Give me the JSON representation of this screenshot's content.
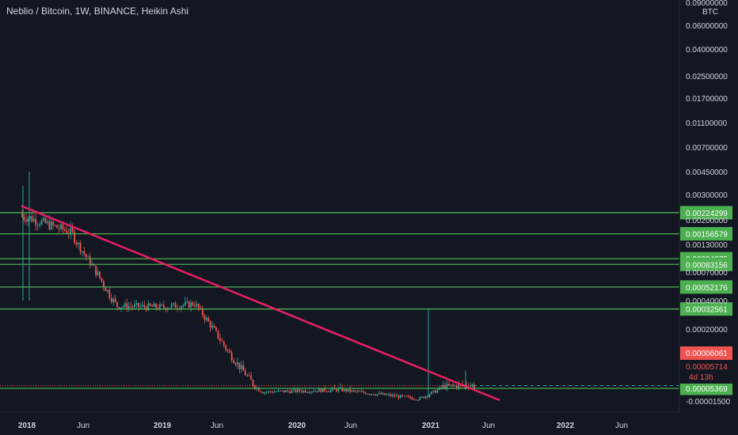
{
  "header": {
    "symbol": "Neblio / Bitcoin",
    "interval": "1W",
    "exchange": "BINANCE",
    "chart_style": "Heikin Ashi",
    "title_full": "Neblio / Bitcoin, 1W, BINANCE, Heikin Ashi"
  },
  "price_axis": {
    "unit": "BTC",
    "scale": "log"
  },
  "colors": {
    "background": "#131722",
    "up": "#26a69a",
    "down": "#ef5350",
    "level_line": "#4caf50",
    "trendline": "#e91e63",
    "current_price": "#ef5350"
  },
  "chart_data": {
    "type": "candlestick",
    "title": "Neblio / Bitcoin, 1W, BINANCE, Heikin Ashi",
    "xlabel": "",
    "ylabel": "BTC",
    "ylim": [
      -1.5e-05,
      0.09
    ],
    "y_scale": "log",
    "grid": false,
    "x_ticks": [
      "2018",
      "Jun",
      "2019",
      "Jun",
      "2020",
      "Jun",
      "2021",
      "Jun",
      "2022",
      "Jun"
    ],
    "y_ticks": [
      "0.09000000",
      "0.06000000",
      "0.04000000",
      "0.02500000",
      "0.01700000",
      "0.01100000",
      "0.00700000",
      "0.00450000",
      "0.00300000",
      "0.00200000",
      "0.00130000",
      "0.00070000",
      "0.00040000",
      "0.00020000",
      "-0.00001500"
    ],
    "key_points": [
      {
        "date": "2018-01",
        "price": 0.0021
      },
      {
        "date": "2018-05",
        "price": 0.0016
      },
      {
        "date": "2018-09",
        "price": 0.00035
      },
      {
        "date": "2019-01",
        "price": 0.00034
      },
      {
        "date": "2019-04",
        "price": 0.00037
      },
      {
        "date": "2019-07",
        "price": 0.00012
      },
      {
        "date": "2019-10",
        "price": 4.5e-05
      },
      {
        "date": "2020-05",
        "price": 5e-05
      },
      {
        "date": "2020-12",
        "price": 3.2e-05
      },
      {
        "date": "2021-02",
        "price": 5.5e-05
      },
      {
        "date": "2021-04",
        "price": 5.7e-05
      }
    ],
    "horizontal_levels": [
      {
        "label": "0.00224299",
        "value": 0.00224299
      },
      {
        "label": "0.00156579",
        "value": 0.00156579
      },
      {
        "label": "0.00094375",
        "value": 0.00094375
      },
      {
        "label": "0.00083156",
        "value": 0.00083156
      },
      {
        "label": "0.00052176",
        "value": 0.00052176
      },
      {
        "label": "0.00032561",
        "value": 0.00032561
      },
      {
        "label": "0.00005369",
        "value": 5.369e-05
      }
    ],
    "trendline": {
      "start": {
        "date": "2018-01",
        "price": 0.0025
      },
      "end": {
        "date": "2021-06",
        "price": 2e-05
      }
    },
    "current_price": {
      "value": "0.00005714",
      "countdown": "4d 13h"
    },
    "high_marker": "0.00006061"
  }
}
